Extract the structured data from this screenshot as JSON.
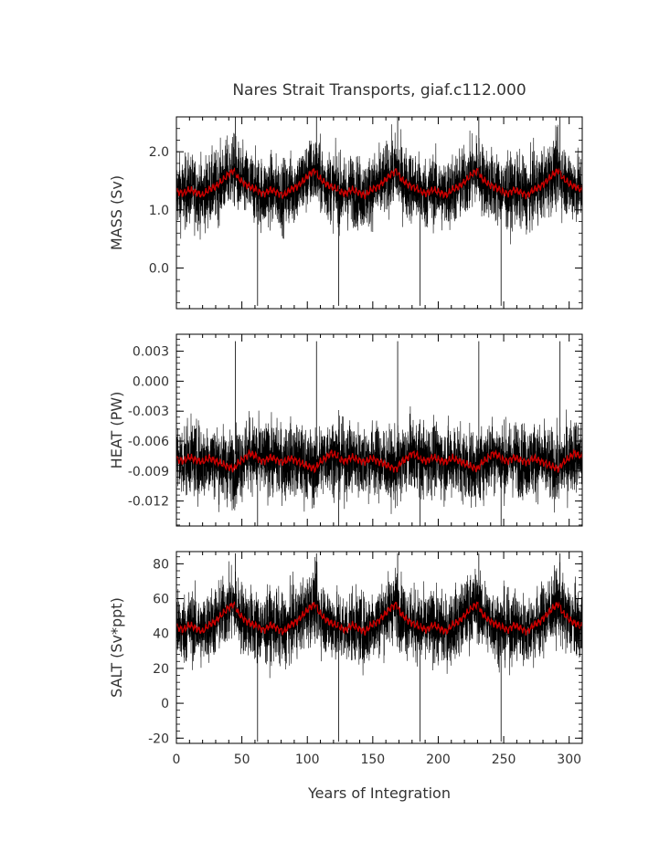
{
  "chart_data": {
    "type": "line",
    "title": "Nares Strait Transports, giaf.c112.000",
    "xlabel": "Years of Integration",
    "xlim": [
      0,
      310
    ],
    "x_ticks": [
      0,
      50,
      100,
      150,
      200,
      250,
      300
    ],
    "x_tick_labels": [
      "0",
      "50",
      "100",
      "150",
      "200",
      "250",
      "300"
    ],
    "colors": {
      "raw": "#000000",
      "smoothed": "#cc0000"
    },
    "cycle_period_years": 62,
    "panels": [
      {
        "ylabel": "MASS (Sv)",
        "ylim": [
          -0.7,
          2.6
        ],
        "y_ticks": [
          0.0,
          1.0,
          2.0
        ],
        "y_tick_labels": [
          "0.0",
          "1.0",
          "2.0"
        ],
        "mean": 1.4,
        "noise_amplitude": 0.3,
        "spike_down_value": -0.65,
        "spike_up_value": 2.6,
        "smoothed_cycle": [
          [
            0,
            1.32
          ],
          [
            5,
            1.28
          ],
          [
            10,
            1.35
          ],
          [
            15,
            1.3
          ],
          [
            20,
            1.25
          ],
          [
            25,
            1.35
          ],
          [
            30,
            1.4
          ],
          [
            35,
            1.5
          ],
          [
            40,
            1.62
          ],
          [
            44,
            1.68
          ],
          [
            47,
            1.55
          ],
          [
            52,
            1.45
          ],
          [
            56,
            1.4
          ],
          [
            62,
            1.34
          ]
        ]
      },
      {
        "ylabel": "HEAT (PW)",
        "ylim": [
          -0.0145,
          0.0047
        ],
        "y_ticks": [
          0.003,
          0.0,
          -0.003,
          -0.006,
          -0.009,
          -0.012
        ],
        "y_tick_labels": [
          "0.003",
          "0.000",
          "-0.003",
          "-0.006",
          "-0.009",
          "-0.012"
        ],
        "mean": -0.0073,
        "noise_amplitude": 0.0018,
        "spike_down_value": -0.0145,
        "spike_up_value": 0.004,
        "smoothed_cycle": [
          [
            0,
            -0.0078
          ],
          [
            5,
            -0.008
          ],
          [
            10,
            -0.0076
          ],
          [
            15,
            -0.0079
          ],
          [
            20,
            -0.0081
          ],
          [
            25,
            -0.0077
          ],
          [
            30,
            -0.008
          ],
          [
            35,
            -0.0083
          ],
          [
            40,
            -0.0086
          ],
          [
            44,
            -0.0088
          ],
          [
            47,
            -0.0082
          ],
          [
            52,
            -0.0077
          ],
          [
            56,
            -0.0072
          ],
          [
            62,
            -0.0076
          ]
        ]
      },
      {
        "ylabel": "SALT (Sv*ppt)",
        "ylim": [
          -23,
          87
        ],
        "y_ticks": [
          -20,
          0,
          20,
          40,
          60,
          80
        ],
        "y_tick_labels": [
          "-20",
          "0",
          "20",
          "40",
          "60",
          "80"
        ],
        "mean": 46,
        "noise_amplitude": 10,
        "spike_down_value": -22,
        "spike_up_value": 86,
        "smoothed_cycle": [
          [
            0,
            44
          ],
          [
            5,
            42
          ],
          [
            10,
            45
          ],
          [
            15,
            43
          ],
          [
            20,
            41
          ],
          [
            25,
            45
          ],
          [
            30,
            47
          ],
          [
            35,
            51
          ],
          [
            40,
            55
          ],
          [
            44,
            57
          ],
          [
            47,
            52
          ],
          [
            52,
            48
          ],
          [
            56,
            46
          ],
          [
            62,
            44
          ]
        ]
      }
    ]
  }
}
